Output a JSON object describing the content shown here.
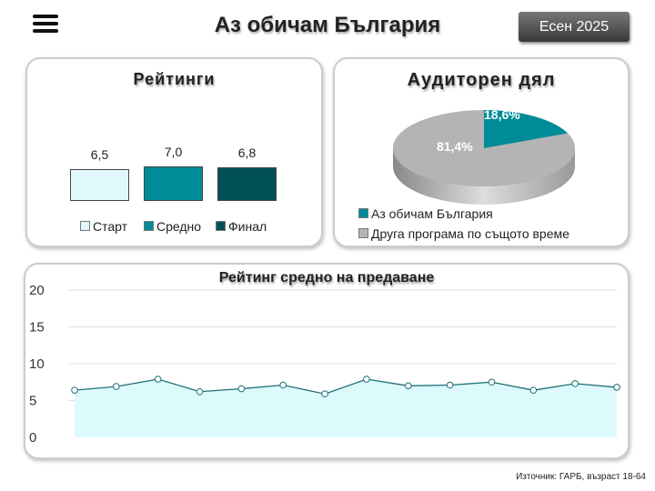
{
  "header": {
    "title": "Аз обичам България",
    "season": "Есен 2025"
  },
  "colors": {
    "start": "#e0f8fb",
    "avg": "#008b99",
    "final": "#005058",
    "other": "#b4b4b4",
    "area": "#dcf9fc",
    "line": "#1f6f78"
  },
  "chart_data": [
    {
      "type": "bar",
      "title": "Рейтинги",
      "categories": [
        "Старт",
        "Средно",
        "Финал"
      ],
      "values": [
        6.5,
        7.0,
        6.8
      ],
      "labels": [
        "6,5",
        "7,0",
        "6,8"
      ],
      "legend": "bottom"
    },
    {
      "type": "pie",
      "title": "Аудиторен дял",
      "slices": [
        {
          "name": "Аз обичам България",
          "value": 18.6,
          "label": "18,6%"
        },
        {
          "name": "Друга програма по същото време",
          "value": 81.4,
          "label": "81,4%"
        }
      ],
      "legend": "bottom"
    },
    {
      "type": "area",
      "title": "Рейтинг средно на предаване",
      "values": [
        6.4,
        6.9,
        7.9,
        6.2,
        6.6,
        7.1,
        5.9,
        7.9,
        7.0,
        7.1,
        7.5,
        6.4,
        7.3,
        6.8
      ],
      "ylim": [
        0,
        20
      ],
      "yticks": [
        "0",
        "5",
        "10",
        "15",
        "20"
      ],
      "grid": true
    }
  ],
  "footer": {
    "source": "Източник: ГАРБ, възраст 18-64"
  }
}
